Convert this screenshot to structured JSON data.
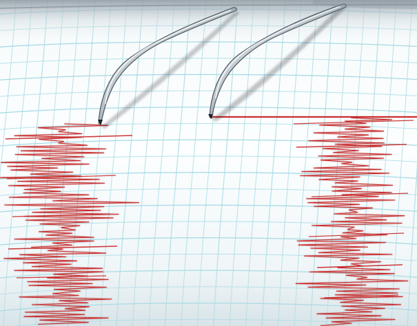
{
  "scene": {
    "subject": "",
    "colors": {
      "paper_light": "#f7fbfc",
      "paper_mid": "#e7f1f4",
      "paper_shadow": "#d6e3e8",
      "grid": "#a8dde6",
      "grid_strong": "#8fcfdb",
      "trace": "#c72323",
      "trace_dark": "#951616",
      "needle_light": "#f4f7f8",
      "needle_mid": "#a6b2ba",
      "needle_dark": "#1b1d20",
      "top_shadow": "#b9c6ce"
    },
    "elements": {
      "paper": {
        "label": "",
        "grid": "on",
        "texture": "glossy-cylindrical"
      },
      "left_needle": {
        "shape": "curved-stylus",
        "state": "recording",
        "trace_color": "red"
      },
      "right_needle": {
        "shape": "curved-stylus",
        "state": "recording",
        "trace_color": "red"
      },
      "left_trace": {
        "type": "seismic-wiggle",
        "emphasis": "dense-noisy"
      },
      "right_trace": {
        "type": "seismic-wiggle",
        "emphasis": "dense-noisy"
      },
      "baseline": {
        "type": "horizontal-red-line"
      }
    }
  }
}
